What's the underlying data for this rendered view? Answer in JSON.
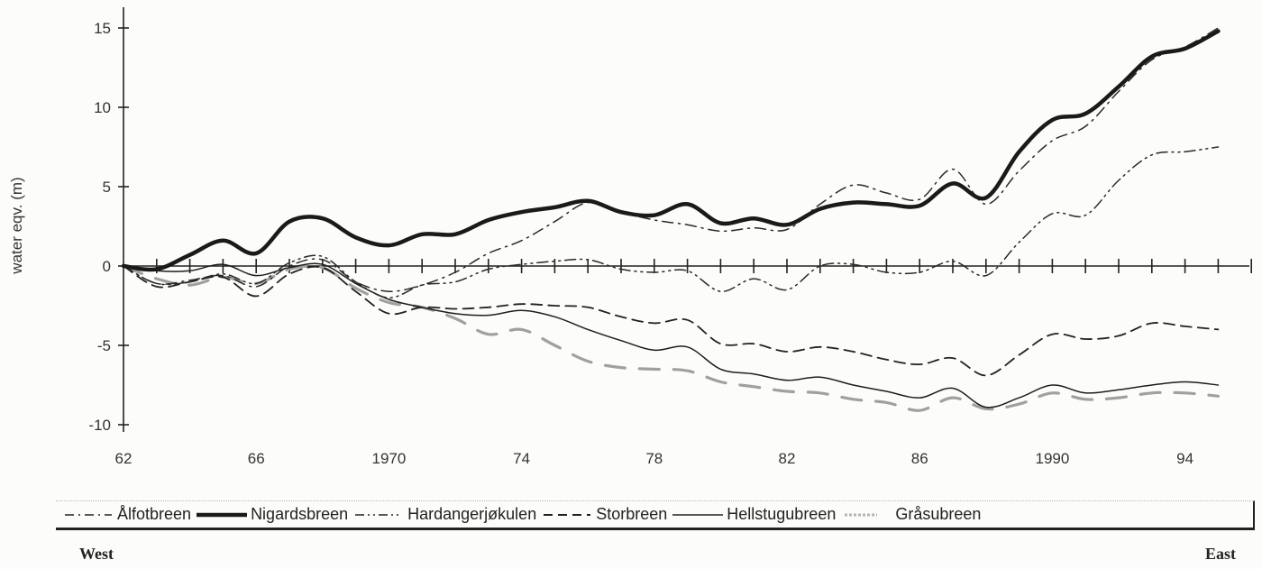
{
  "chart_data": {
    "type": "line",
    "title": "",
    "xlabel": "",
    "ylabel": "water eqv. (m)",
    "ylim": [
      -10,
      16
    ],
    "xlim": [
      1962,
      1996
    ],
    "grid": false,
    "legend_position": "bottom",
    "y_ticks": [
      15,
      10,
      5,
      0,
      -5,
      -10
    ],
    "y_tick_labels": [
      "15",
      "10",
      "5",
      "0",
      "-5",
      "-10"
    ],
    "x_ticks": [
      1962,
      1966,
      1970,
      1974,
      1978,
      1982,
      1986,
      1990,
      1994
    ],
    "x_tick_labels": [
      "62",
      "66",
      "1970",
      "74",
      "78",
      "82",
      "86",
      "1990",
      "94"
    ],
    "x": [
      1962,
      1963,
      1964,
      1965,
      1966,
      1967,
      1968,
      1969,
      1970,
      1971,
      1972,
      1973,
      1974,
      1975,
      1976,
      1977,
      1978,
      1979,
      1980,
      1981,
      1982,
      1983,
      1984,
      1985,
      1986,
      1987,
      1988,
      1989,
      1990,
      1991,
      1992,
      1993,
      1994,
      1995
    ],
    "series": [
      {
        "name": "Ålfotbreen",
        "style": "dash-dot",
        "values": [
          0,
          -1.1,
          -0.9,
          -0.6,
          -1.3,
          0.0,
          0.4,
          -1.0,
          -1.6,
          -1.2,
          -0.4,
          0.8,
          1.6,
          2.8,
          4.0,
          3.4,
          2.9,
          2.6,
          2.2,
          2.4,
          2.3,
          3.9,
          5.1,
          4.6,
          4.2,
          6.1,
          3.9,
          6.0,
          7.9,
          8.8,
          11.0,
          13.0,
          13.8,
          15.0
        ]
      },
      {
        "name": "Nigardsbreen",
        "style": "thick-solid",
        "values": [
          0,
          -0.2,
          0.7,
          1.6,
          0.8,
          2.8,
          3.0,
          1.8,
          1.3,
          2.0,
          2.0,
          2.9,
          3.4,
          3.7,
          4.1,
          3.4,
          3.2,
          3.9,
          2.7,
          3.0,
          2.6,
          3.6,
          4.0,
          3.9,
          3.8,
          5.2,
          4.3,
          7.2,
          9.2,
          9.6,
          11.3,
          13.2,
          13.7,
          14.8
        ]
      },
      {
        "name": "Hardangerjøkulen",
        "style": "dash-dot-dot",
        "values": [
          0,
          -1.1,
          -1.0,
          -0.5,
          -1.1,
          0.2,
          0.6,
          -1.0,
          -2.0,
          -1.2,
          -1.0,
          -0.2,
          0.1,
          0.3,
          0.4,
          -0.2,
          -0.4,
          -0.3,
          -1.6,
          -0.8,
          -1.5,
          0.0,
          0.1,
          -0.4,
          -0.4,
          0.3,
          -0.6,
          1.5,
          3.3,
          3.2,
          5.4,
          7.0,
          7.2,
          7.5
        ]
      },
      {
        "name": "Storbreen",
        "style": "dashed",
        "values": [
          0,
          -1.3,
          -1.0,
          -0.7,
          -1.9,
          -0.5,
          -0.1,
          -1.6,
          -3.0,
          -2.6,
          -2.7,
          -2.6,
          -2.4,
          -2.5,
          -2.6,
          -3.2,
          -3.6,
          -3.4,
          -4.9,
          -4.9,
          -5.4,
          -5.1,
          -5.4,
          -5.9,
          -6.2,
          -5.8,
          -6.9,
          -5.6,
          -4.3,
          -4.6,
          -4.4,
          -3.6,
          -3.8,
          -4.0
        ]
      },
      {
        "name": "Hellstugubreen",
        "style": "thin-solid",
        "values": [
          0,
          -0.3,
          -0.3,
          0.1,
          -0.6,
          -0.1,
          0.1,
          -1.1,
          -2.1,
          -2.6,
          -3.0,
          -3.1,
          -2.8,
          -3.2,
          -4.0,
          -4.7,
          -5.3,
          -5.1,
          -6.5,
          -6.8,
          -7.2,
          -7.0,
          -7.5,
          -7.9,
          -8.3,
          -7.7,
          -8.9,
          -8.3,
          -7.5,
          -8.0,
          -7.8,
          -7.5,
          -7.3,
          -7.5
        ]
      },
      {
        "name": "Gråsubreen",
        "style": "grey-dotted",
        "values": [
          0,
          -0.8,
          -1.2,
          -0.7,
          -1.1,
          -0.2,
          -0.1,
          -1.4,
          -2.3,
          -2.6,
          -3.3,
          -4.3,
          -4.0,
          -5.0,
          -6.0,
          -6.4,
          -6.5,
          -6.6,
          -7.3,
          -7.6,
          -7.9,
          -8.0,
          -8.4,
          -8.6,
          -9.1,
          -8.3,
          -9.0,
          -8.7,
          -8.0,
          -8.4,
          -8.3,
          -8.0,
          -8.0,
          -8.2
        ]
      }
    ],
    "annotations": [
      "West",
      "East"
    ]
  },
  "legend": {
    "items": [
      {
        "label": "Ålfotbreen",
        "style": "dash-dot"
      },
      {
        "label": "Nigardsbreen",
        "style": "thick-solid"
      },
      {
        "label": "Hardangerjøkulen",
        "style": "dash-dot-dot"
      },
      {
        "label": "Storbreen",
        "style": "dashed"
      },
      {
        "label": "Hellstugubreen",
        "style": "thin-solid"
      },
      {
        "label": "Gråsubreen",
        "style": "grey-dotted"
      }
    ]
  },
  "direction": {
    "left": "West",
    "right": "East"
  },
  "colors": {
    "line": "#1e1e1e",
    "grey_series": "#9a9a9a",
    "background": "#fcfcfa"
  }
}
